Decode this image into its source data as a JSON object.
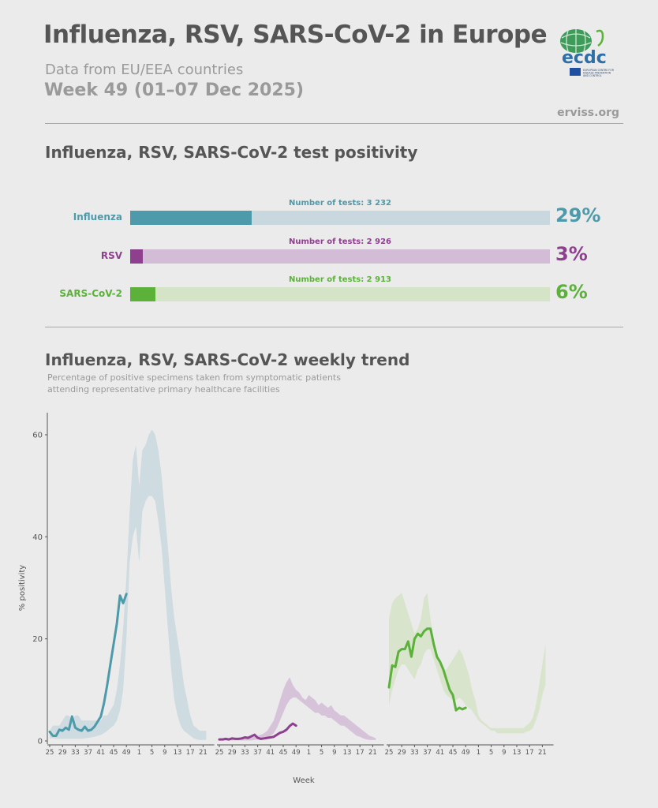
{
  "header": {
    "title": "Influenza, RSV, SARS-CoV-2 in Europe",
    "subtitle": "Data from EU/EEA countries",
    "week": "Week 49 (01–07 Dec 2025)",
    "source": "erviss.org",
    "logo_text": "ecdc",
    "logo_small": "EUROPEAN CENTRE FOR DISEASE PREVENTION AND CONTROL"
  },
  "positivity_section": {
    "heading": "Influenza, RSV, SARS-CoV-2 test positivity",
    "items": [
      {
        "name": "Influenza",
        "tests": "Number of tests: 3 232",
        "percent_label": "29%",
        "percent": 29,
        "color": "#4d9aaa",
        "track_color": "#c9d8df"
      },
      {
        "name": "RSV",
        "tests": "Number of tests: 2 926",
        "percent_label": "3%",
        "percent": 3,
        "color": "#8e3f8e",
        "track_color": "#d2bcd6"
      },
      {
        "name": "SARS-CoV-2",
        "tests": "Number of tests: 2 913",
        "percent_label": "6%",
        "percent": 6,
        "color": "#5cb13a",
        "track_color": "#d5e3c6"
      }
    ]
  },
  "trend_section": {
    "heading": "Influenza, RSV, SARS-CoV-2 weekly trend",
    "note": "Percentage of positive specimens taken from symptomatic patients attending representative primary healthcare facilities"
  },
  "chart_data": {
    "type": "line",
    "ylabel": "% positivity",
    "xlabel": "Week",
    "ylim": [
      0,
      63
    ],
    "yticks": [
      0,
      20,
      40,
      60
    ],
    "x_tick_labels": [
      "25",
      "29",
      "33",
      "37",
      "41",
      "45",
      "49",
      "1",
      "5",
      "9",
      "13",
      "17",
      "21"
    ],
    "panels": [
      {
        "name": "Influenza",
        "color": "#4d9aaa",
        "band_color": "#c9d8df",
        "band_weeks": [
          25,
          26,
          27,
          28,
          29,
          30,
          31,
          32,
          33,
          34,
          35,
          36,
          37,
          38,
          39,
          40,
          41,
          42,
          43,
          44,
          45,
          46,
          47,
          48,
          49,
          50,
          51,
          52,
          1,
          2,
          3,
          4,
          5,
          6,
          7,
          8,
          9,
          10,
          11,
          12,
          13,
          14,
          15,
          16,
          17,
          18,
          19,
          20,
          21,
          22
        ],
        "band_low": [
          0.5,
          0.5,
          0.4,
          0.4,
          0.4,
          0.4,
          0.4,
          0.4,
          0.4,
          0.4,
          0.4,
          0.5,
          0.6,
          0.7,
          0.8,
          1.0,
          1.2,
          1.5,
          2,
          2.5,
          3,
          4,
          6,
          10,
          20,
          35,
          40,
          42,
          35,
          45,
          47,
          48,
          48,
          47,
          43,
          38,
          30,
          22,
          14,
          8,
          5,
          3,
          2,
          1.5,
          1,
          0.5,
          0.3,
          0.2,
          0.2,
          0.2
        ],
        "band_high": [
          2,
          3,
          3,
          3,
          4,
          5,
          5,
          4,
          5,
          5,
          4,
          4,
          4,
          4,
          4,
          4,
          4,
          5,
          5,
          6,
          7,
          10,
          15,
          22,
          32,
          45,
          55,
          58,
          50,
          57,
          58,
          60,
          61,
          60,
          57,
          52,
          45,
          38,
          30,
          24,
          20,
          16,
          11,
          8,
          5,
          3,
          2.5,
          2,
          2,
          2
        ],
        "line_weeks": [
          25,
          26,
          27,
          28,
          29,
          30,
          31,
          32,
          33,
          34,
          35,
          36,
          37,
          38,
          39,
          40,
          41,
          42,
          43,
          44,
          45,
          46,
          47,
          48,
          49
        ],
        "line_values": [
          1.8,
          1.0,
          1.0,
          2.2,
          2.0,
          2.6,
          2.2,
          4.8,
          2.6,
          2.2,
          2.0,
          2.8,
          2.0,
          2.2,
          2.8,
          3.8,
          4.8,
          7.4,
          11,
          15,
          19,
          23,
          28.5,
          27,
          28.8
        ]
      },
      {
        "name": "RSV",
        "color": "#8e3f8e",
        "band_color": "#d2bcd6",
        "band_weeks": [
          25,
          26,
          27,
          28,
          29,
          30,
          31,
          32,
          33,
          34,
          35,
          36,
          37,
          38,
          39,
          40,
          41,
          42,
          43,
          44,
          45,
          46,
          47,
          48,
          49,
          50,
          51,
          52,
          1,
          2,
          3,
          4,
          5,
          6,
          7,
          8,
          9,
          10,
          11,
          12,
          13,
          14,
          15,
          16,
          17,
          18,
          19,
          20,
          21,
          22
        ],
        "band_low": [
          0.1,
          0.1,
          0.1,
          0.1,
          0.1,
          0.1,
          0.1,
          0.1,
          0.1,
          0.1,
          0.1,
          0.2,
          0.3,
          0.4,
          0.5,
          0.7,
          1.0,
          1.5,
          2.5,
          4,
          5.5,
          7,
          8,
          8.5,
          8.5,
          8,
          7.5,
          7,
          6.5,
          6,
          5.5,
          5.5,
          5,
          5,
          4.5,
          4.5,
          4,
          3.5,
          3,
          3,
          2.5,
          2,
          1.5,
          1,
          0.8,
          0.5,
          0.3,
          0.2,
          0.2,
          0.2
        ],
        "band_high": [
          0.5,
          0.5,
          0.5,
          0.5,
          0.6,
          0.6,
          0.6,
          0.7,
          0.7,
          0.8,
          0.8,
          0.9,
          1.0,
          1.2,
          1.5,
          2,
          3,
          4,
          6,
          8,
          10,
          11.5,
          12.5,
          11,
          10,
          9.5,
          8.5,
          8,
          9,
          8.5,
          8,
          7,
          7.5,
          7,
          6.5,
          7,
          6,
          5.5,
          5,
          5,
          4.5,
          4,
          3.5,
          3,
          2.5,
          2,
          1.5,
          1,
          0.8,
          0.5
        ],
        "line_weeks": [
          25,
          26,
          27,
          28,
          29,
          30,
          31,
          32,
          33,
          34,
          35,
          36,
          37,
          38,
          39,
          40,
          41,
          42,
          43,
          44,
          45,
          46,
          47,
          48,
          49
        ],
        "line_values": [
          0.3,
          0.3,
          0.4,
          0.3,
          0.5,
          0.4,
          0.4,
          0.5,
          0.7,
          0.6,
          0.9,
          1.2,
          0.6,
          0.4,
          0.5,
          0.6,
          0.7,
          0.8,
          1.2,
          1.6,
          1.8,
          2.2,
          2.9,
          3.4,
          3.0
        ]
      },
      {
        "name": "SARS-CoV-2",
        "color": "#5cb13a",
        "band_color": "#d5e3c6",
        "band_weeks": [
          25,
          26,
          27,
          28,
          29,
          30,
          31,
          32,
          33,
          34,
          35,
          36,
          37,
          38,
          39,
          40,
          41,
          42,
          43,
          44,
          45,
          46,
          47,
          48,
          49,
          50,
          51,
          52,
          1,
          2,
          3,
          4,
          5,
          6,
          7,
          8,
          9,
          10,
          11,
          12,
          13,
          14,
          15,
          16,
          17,
          18,
          19,
          20,
          21,
          22
        ],
        "band_low": [
          7,
          10,
          12,
          14,
          15,
          15,
          14,
          13,
          12,
          14,
          15,
          17,
          18,
          18,
          16,
          14,
          12,
          10,
          9,
          8.5,
          8,
          8,
          8.5,
          8,
          7,
          6.5,
          6,
          5,
          4,
          3.5,
          3,
          2.5,
          2,
          2,
          1.5,
          1.5,
          1.5,
          1.5,
          1.5,
          1.5,
          1.5,
          1.5,
          1.5,
          1.8,
          2,
          2.5,
          4,
          6,
          9,
          11
        ],
        "band_high": [
          24,
          27,
          28,
          28.5,
          29,
          27,
          25,
          23,
          21,
          22,
          24,
          28,
          29,
          24,
          20,
          17,
          15,
          14,
          14,
          15,
          16,
          17,
          18,
          17,
          15,
          13,
          10,
          8,
          5,
          4,
          3.5,
          3,
          2.5,
          2.5,
          2.5,
          2.5,
          2.5,
          2.5,
          2.5,
          2.5,
          2.5,
          2.5,
          2.5,
          3,
          3.5,
          4.5,
          7,
          11,
          15,
          19
        ],
        "line_weeks": [
          25,
          26,
          27,
          28,
          29,
          30,
          31,
          32,
          33,
          34,
          35,
          36,
          37,
          38,
          39,
          40,
          41,
          42,
          43,
          44,
          45,
          46,
          47,
          48,
          49
        ],
        "line_values": [
          10.5,
          14.8,
          14.5,
          17.5,
          18,
          18,
          19.5,
          16.5,
          20,
          21,
          20.5,
          21.5,
          22,
          22,
          19,
          16.5,
          15.5,
          14,
          12,
          10,
          9,
          6,
          6.5,
          6.2,
          6.5
        ]
      }
    ]
  }
}
